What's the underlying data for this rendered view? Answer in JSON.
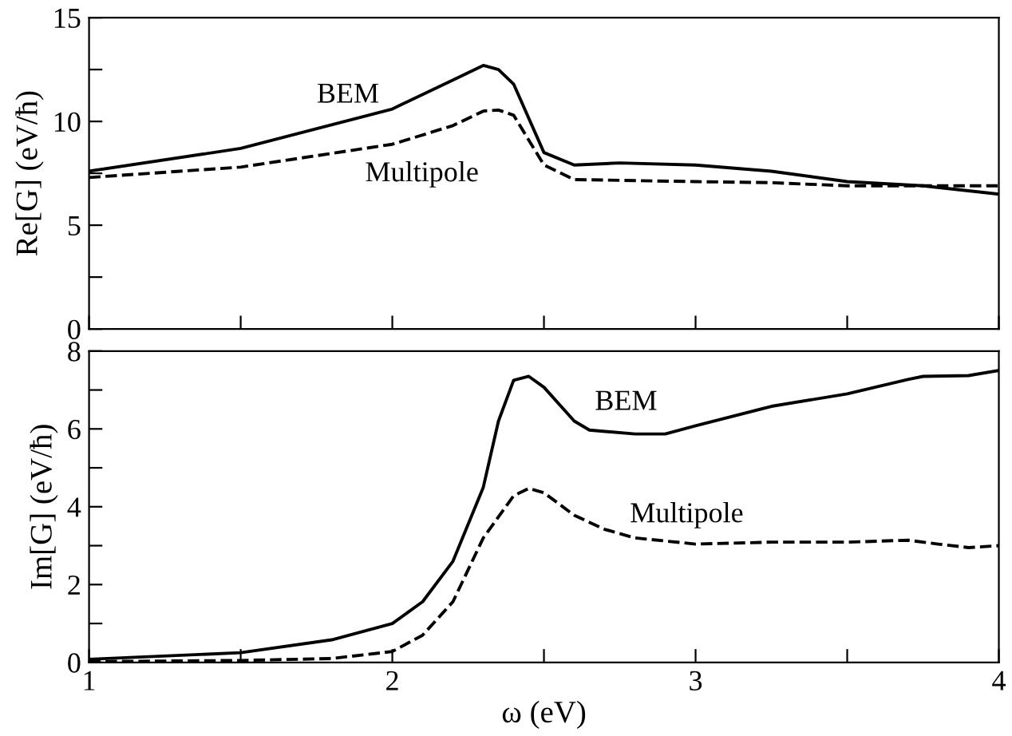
{
  "chart_data": [
    {
      "type": "line",
      "ylabel": "Re[G] (eV/ħ)",
      "xlim": [
        1,
        4
      ],
      "ylim": [
        0,
        15
      ],
      "xticks": [
        1,
        {
          "value": 1.5,
          "label": null
        },
        2,
        {
          "value": 2.5,
          "label": null
        },
        3,
        {
          "value": 3.5,
          "label": null
        },
        4
      ],
      "yticks": [
        0,
        {
          "value": 2.5,
          "label": null
        },
        5,
        {
          "value": 7.5,
          "label": null
        },
        10,
        {
          "value": 12.5,
          "label": null
        },
        15
      ],
      "tick_labels": "y",
      "grid": false,
      "legend": false,
      "series": [
        {
          "name": "BEM",
          "color": "#000000",
          "line_style": "solid",
          "x": [
            1.0,
            1.5,
            2.0,
            2.2,
            2.3,
            2.35,
            2.4,
            2.5,
            2.6,
            2.75,
            3.0,
            3.25,
            3.5,
            3.75,
            4.0
          ],
          "values": [
            7.6,
            8.7,
            10.6,
            12.0,
            12.7,
            12.5,
            11.8,
            8.5,
            7.9,
            8.0,
            7.9,
            7.6,
            7.1,
            6.9,
            6.5
          ]
        },
        {
          "name": "Multipole",
          "color": "#000000",
          "line_style": "dashed",
          "x": [
            1.0,
            1.5,
            2.0,
            2.2,
            2.3,
            2.35,
            2.4,
            2.5,
            2.6,
            3.0,
            3.25,
            3.5,
            3.75,
            4.0
          ],
          "values": [
            7.3,
            7.8,
            8.9,
            9.8,
            10.5,
            10.55,
            10.3,
            7.9,
            7.2,
            7.1,
            7.05,
            6.9,
            6.9,
            6.9
          ]
        }
      ]
    },
    {
      "type": "line",
      "xlabel": "ω (eV)",
      "ylabel": "Im[G] (eV/ħ)",
      "xlim": [
        1,
        4
      ],
      "ylim": [
        0,
        8
      ],
      "xticks": [
        1,
        {
          "value": 1.5,
          "label": null
        },
        2,
        {
          "value": 2.5,
          "label": null
        },
        3,
        {
          "value": 3.5,
          "label": null
        },
        4
      ],
      "yticks": [
        0,
        {
          "value": 1,
          "label": null
        },
        2,
        {
          "value": 3,
          "label": null
        },
        4,
        {
          "value": 5,
          "label": null
        },
        6,
        {
          "value": 7,
          "label": null
        },
        8
      ],
      "grid": false,
      "legend": false,
      "series": [
        {
          "name": "BEM",
          "color": "#000000",
          "line_style": "solid",
          "x": [
            1.0,
            1.5,
            1.8,
            2.0,
            2.1,
            2.2,
            2.3,
            2.35,
            2.4,
            2.45,
            2.5,
            2.6,
            2.65,
            2.8,
            2.9,
            3.0,
            3.25,
            3.5,
            3.7,
            3.75,
            3.9,
            4.0
          ],
          "values": [
            0.08,
            0.25,
            0.58,
            1.0,
            1.56,
            2.6,
            4.5,
            6.2,
            7.25,
            7.35,
            7.07,
            6.2,
            5.97,
            5.87,
            5.87,
            6.08,
            6.58,
            6.9,
            7.27,
            7.35,
            7.37,
            7.5
          ]
        },
        {
          "name": "Multipole",
          "color": "#000000",
          "line_style": "dashed",
          "x": [
            1.0,
            1.5,
            1.8,
            2.0,
            2.1,
            2.2,
            2.3,
            2.4,
            2.45,
            2.5,
            2.6,
            2.7,
            2.8,
            3.0,
            3.25,
            3.5,
            3.7,
            3.8,
            3.9,
            4.0
          ],
          "values": [
            0.02,
            0.05,
            0.1,
            0.28,
            0.7,
            1.56,
            3.2,
            4.28,
            4.47,
            4.36,
            3.78,
            3.42,
            3.2,
            3.04,
            3.09,
            3.09,
            3.14,
            3.04,
            2.95,
            3.0
          ]
        }
      ]
    }
  ]
}
